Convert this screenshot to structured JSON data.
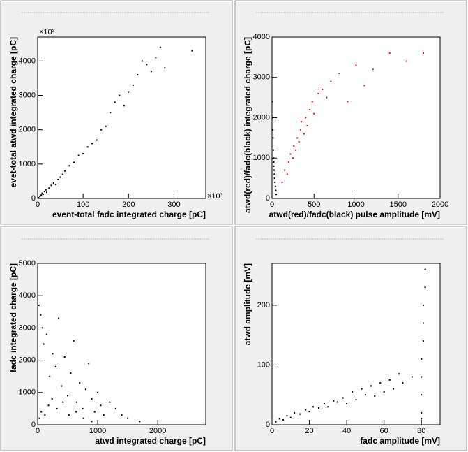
{
  "chart_data": [
    {
      "type": "scatter",
      "x_label": "event-total fadc integrated charge [pC]",
      "y_label": "evet-total atwd integrated charge [pC]",
      "x_multiplier": "×10³",
      "y_multiplier": "×10³",
      "xlim": [
        0,
        370
      ],
      "ylim": [
        0,
        4700
      ],
      "xticks": [
        0,
        100,
        200,
        300
      ],
      "yticks": [
        0,
        1000,
        2000,
        3000,
        4000
      ],
      "series": [
        {
          "color": "#000000",
          "x": [
            2,
            5,
            8,
            10,
            12,
            15,
            18,
            20,
            25,
            30,
            35,
            40,
            45,
            50,
            55,
            60,
            70,
            80,
            90,
            100,
            110,
            120,
            130,
            140,
            150,
            160,
            170,
            180,
            190,
            200,
            210,
            220,
            230,
            240,
            250,
            260,
            270,
            280,
            340
          ],
          "values": [
            20,
            60,
            100,
            150,
            120,
            200,
            250,
            180,
            300,
            380,
            450,
            400,
            550,
            620,
            700,
            800,
            950,
            1050,
            1250,
            1300,
            1500,
            1600,
            1700,
            2000,
            2100,
            2500,
            2800,
            3000,
            2700,
            3100,
            3300,
            3600,
            4000,
            3900,
            3700,
            4100,
            4400,
            3800,
            4300
          ]
        }
      ]
    },
    {
      "type": "scatter",
      "x_label": "atwd(red)/fadc(black) pulse amplitude [mV]",
      "y_label": "atwd(red)/fadc(black) integrated charge [pC]",
      "xlim": [
        0,
        2000
      ],
      "ylim": [
        0,
        4000
      ],
      "xticks": [
        0,
        500,
        1000,
        1500,
        2000
      ],
      "yticks": [
        0,
        1000,
        2000,
        3000,
        4000
      ],
      "series": [
        {
          "color": "#ff0000",
          "x": [
            120,
            150,
            180,
            200,
            220,
            250,
            260,
            280,
            300,
            320,
            340,
            350,
            380,
            400,
            420,
            450,
            480,
            500,
            550,
            600,
            650,
            700,
            800,
            900,
            1000,
            1100,
            1200,
            1400,
            1600,
            1800
          ],
          "values": [
            400,
            700,
            600,
            900,
            1100,
            1000,
            1300,
            1200,
            1500,
            1400,
            1700,
            1900,
            1600,
            2000,
            1800,
            2200,
            2400,
            2100,
            2600,
            2700,
            2500,
            2900,
            3100,
            2400,
            3300,
            2800,
            3200,
            3600,
            3400,
            3600
          ]
        },
        {
          "color": "#000000",
          "x": [
            5,
            8,
            10,
            12,
            15,
            18,
            20,
            22,
            25,
            28,
            30,
            35,
            40,
            45,
            50
          ],
          "values": [
            2400,
            2000,
            1700,
            1500,
            1200,
            1000,
            900,
            800,
            700,
            600,
            500,
            400,
            300,
            200,
            100
          ]
        }
      ]
    },
    {
      "type": "scatter",
      "x_label": "atwd integrated charge [pC]",
      "y_label": "fadc integrated charge [pC]",
      "xlim": [
        0,
        2800
      ],
      "ylim": [
        0,
        5000
      ],
      "xticks": [
        0,
        1000,
        2000
      ],
      "yticks": [
        0,
        1000,
        2000,
        3000,
        4000,
        5000
      ],
      "series": [
        {
          "color": "#000000",
          "x": [
            20,
            50,
            80,
            100,
            150,
            200,
            250,
            300,
            350,
            400,
            450,
            500,
            550,
            600,
            650,
            700,
            750,
            800,
            850,
            900,
            950,
            1000,
            1050,
            1100,
            1200,
            1300,
            1400,
            1500,
            1700,
            30,
            60,
            120,
            180,
            240,
            320,
            420,
            520,
            640,
            760,
            900
          ],
          "values": [
            3700,
            3400,
            3000,
            2500,
            2800,
            1500,
            2200,
            1800,
            3300,
            1200,
            2100,
            900,
            1600,
            2600,
            700,
            1300,
            500,
            1100,
            1900,
            800,
            400,
            1000,
            600,
            300,
            700,
            500,
            300,
            200,
            100,
            200,
            400,
            300,
            600,
            800,
            500,
            700,
            300,
            400,
            200,
            100
          ]
        }
      ]
    },
    {
      "type": "scatter",
      "x_label": "fadc amplitude [mV]",
      "y_label": "atwd amplitude [mV]",
      "xlim": [
        0,
        90
      ],
      "ylim": [
        0,
        270
      ],
      "xticks": [
        0,
        20,
        40,
        60,
        80
      ],
      "yticks": [
        0,
        100,
        200
      ],
      "series": [
        {
          "color": "#000000",
          "x": [
            2,
            4,
            6,
            8,
            10,
            12,
            15,
            18,
            20,
            22,
            25,
            28,
            30,
            33,
            35,
            38,
            40,
            43,
            45,
            48,
            50,
            53,
            55,
            58,
            60,
            63,
            65,
            68,
            70,
            75,
            80,
            80,
            80,
            80,
            81,
            81,
            81,
            82,
            82,
            80
          ],
          "values": [
            5,
            10,
            8,
            15,
            12,
            20,
            18,
            25,
            22,
            30,
            28,
            35,
            30,
            40,
            38,
            45,
            35,
            55,
            42,
            60,
            50,
            65,
            48,
            70,
            55,
            75,
            60,
            85,
            70,
            80,
            20,
            50,
            80,
            110,
            140,
            170,
            200,
            230,
            260,
            10
          ]
        }
      ]
    }
  ]
}
